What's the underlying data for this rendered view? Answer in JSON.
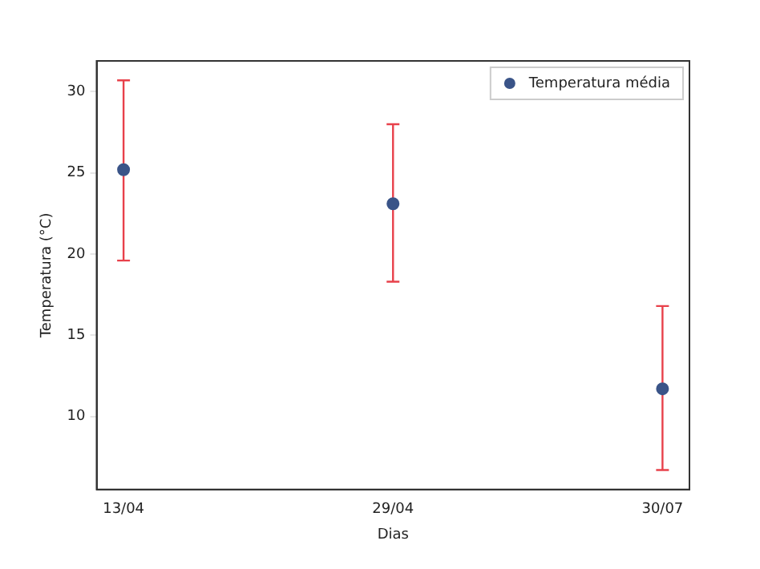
{
  "chart_data": {
    "type": "scatter",
    "xlabel": "Dias",
    "ylabel": "Temperatura (°C)",
    "categories": [
      "13/04",
      "29/04",
      "30/07"
    ],
    "series": [
      {
        "name": "Temperatura média",
        "color": "#3a5488",
        "values": [
          25.2,
          23.1,
          11.7
        ],
        "errors": [
          [
            19.6,
            30.7
          ],
          [
            18.3,
            28.0
          ],
          [
            6.7,
            16.8
          ]
        ]
      }
    ],
    "ylim": [
      5.5,
      31.9
    ],
    "yticks": [
      10,
      15,
      20,
      25,
      30
    ],
    "legend": "top right",
    "marker": "circle",
    "grid": false
  }
}
